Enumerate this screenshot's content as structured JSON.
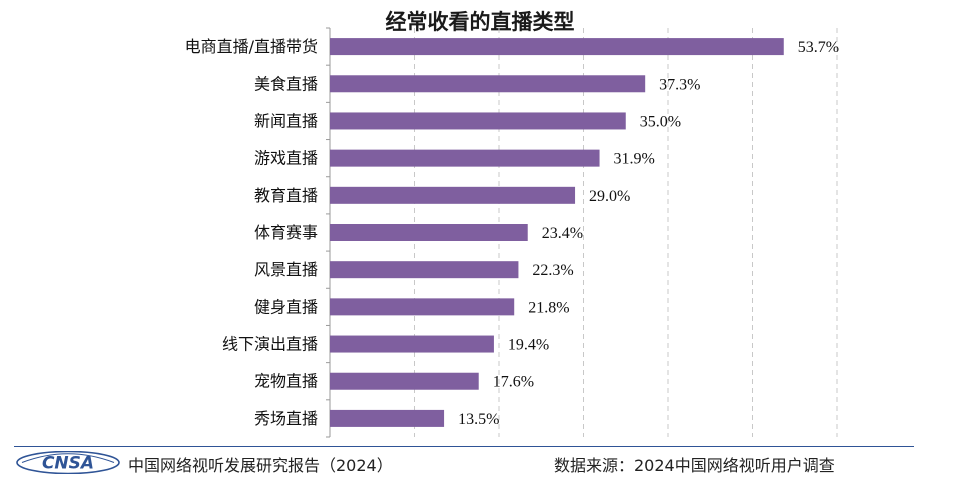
{
  "chart_data": {
    "type": "bar",
    "orientation": "horizontal",
    "title": "经常收看的直播类型",
    "categories": [
      "电商直播/直播带货",
      "美食直播",
      "新闻直播",
      "游戏直播",
      "教育直播",
      "体育赛事",
      "风景直播",
      "健身直播",
      "线下演出直播",
      "宠物直播",
      "秀场直播"
    ],
    "values": [
      53.7,
      37.3,
      35.0,
      31.9,
      29.0,
      23.4,
      22.3,
      21.8,
      19.4,
      17.6,
      13.5
    ],
    "value_labels": [
      "53.7%",
      "37.3%",
      "35.0%",
      "31.9%",
      "29.0%",
      "23.4%",
      "22.3%",
      "21.8%",
      "19.4%",
      "17.6%",
      "13.5%"
    ],
    "unit": "%",
    "xlim": [
      0,
      60
    ],
    "grid": "vertical dashed",
    "bar_color": "#7f5f9f",
    "legend": "none"
  },
  "footer": {
    "logo_text": "CNSA",
    "report": "中国网络视听发展研究报告（2024）",
    "source": "数据来源：2024中国网络视听用户调查"
  },
  "colors": {
    "bar": "#7f5f9f",
    "grid": "#c8c8c8",
    "axis": "#9a9a9a",
    "footer_rule": "#2f5496",
    "logo": "#2f5496"
  }
}
